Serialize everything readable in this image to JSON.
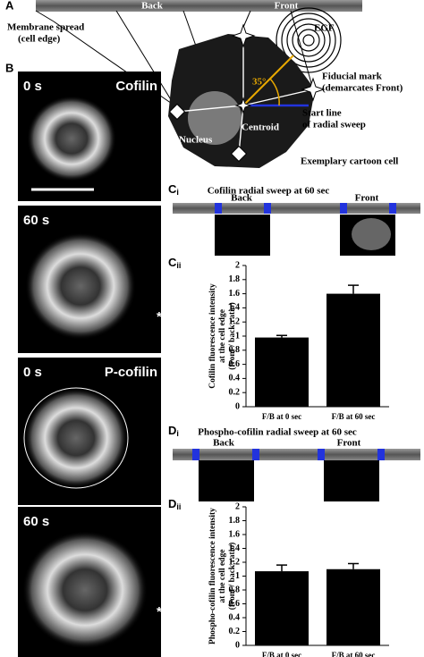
{
  "panel_a": {
    "label": "A",
    "strip_labels": [
      "Back",
      "Front"
    ],
    "membrane": [
      "Membrane spread",
      "(cell edge)"
    ],
    "egf": "EGF",
    "fiducial": [
      "Fiducial mark",
      "(demarcates Front)"
    ],
    "start_line": [
      "Start line",
      "of radial sweep"
    ],
    "angle": "35°",
    "nucleus": "Nucleus",
    "centroid": "Centroid",
    "cartoon": "Exemplary cartoon cell"
  },
  "panel_b": {
    "label": "B",
    "images": [
      {
        "time": "0 s",
        "stain": "Cofilin"
      },
      {
        "time": "60 s"
      },
      {
        "time": "0 s",
        "stain": "P-cofilin"
      },
      {
        "time": "60 s"
      }
    ],
    "markers": [
      "*",
      "*"
    ]
  },
  "panel_ci": {
    "label": {
      "letter": "C",
      "sub": "i"
    },
    "title": "Cofilin radial sweep at 60 sec",
    "strip_labels": [
      "Back",
      "Front"
    ]
  },
  "panel_di": {
    "label": {
      "letter": "D",
      "sub": "i"
    },
    "title": "Phospho-cofilin radial sweep at 60 sec",
    "strip_labels": [
      "Back",
      "Front"
    ]
  },
  "chart_data": [
    {
      "type": "bar",
      "label": {
        "letter": "C",
        "sub": "ii"
      },
      "ylabel": [
        "Cofilin fluorescence intensity",
        "at the cell edge",
        "(front / back ratio)"
      ],
      "categories": [
        "F/B at 0 sec",
        "F/B at 60 sec"
      ],
      "values": [
        0.98,
        1.6
      ],
      "errors": [
        0.03,
        0.12
      ],
      "color": "#000000",
      "ylim": [
        0,
        2
      ],
      "yticks": [
        0,
        0.2,
        0.4,
        0.6,
        0.8,
        1,
        1.2,
        1.4,
        1.6,
        1.8,
        2
      ]
    },
    {
      "type": "bar",
      "label": {
        "letter": "D",
        "sub": "ii"
      },
      "ylabel": [
        "Phospho-cofilin fluorescence intensity",
        "at the cell edge",
        "(front / back ratio)"
      ],
      "categories": [
        "F/B at 0 sec",
        "F/B at 60 sec"
      ],
      "values": [
        1.07,
        1.1
      ],
      "errors": [
        0.09,
        0.08
      ],
      "color": "#000000",
      "ylim": [
        0,
        2
      ],
      "yticks": [
        0,
        0.2,
        0.4,
        0.6,
        0.8,
        1,
        1.2,
        1.4,
        1.6,
        1.8,
        2
      ]
    }
  ]
}
